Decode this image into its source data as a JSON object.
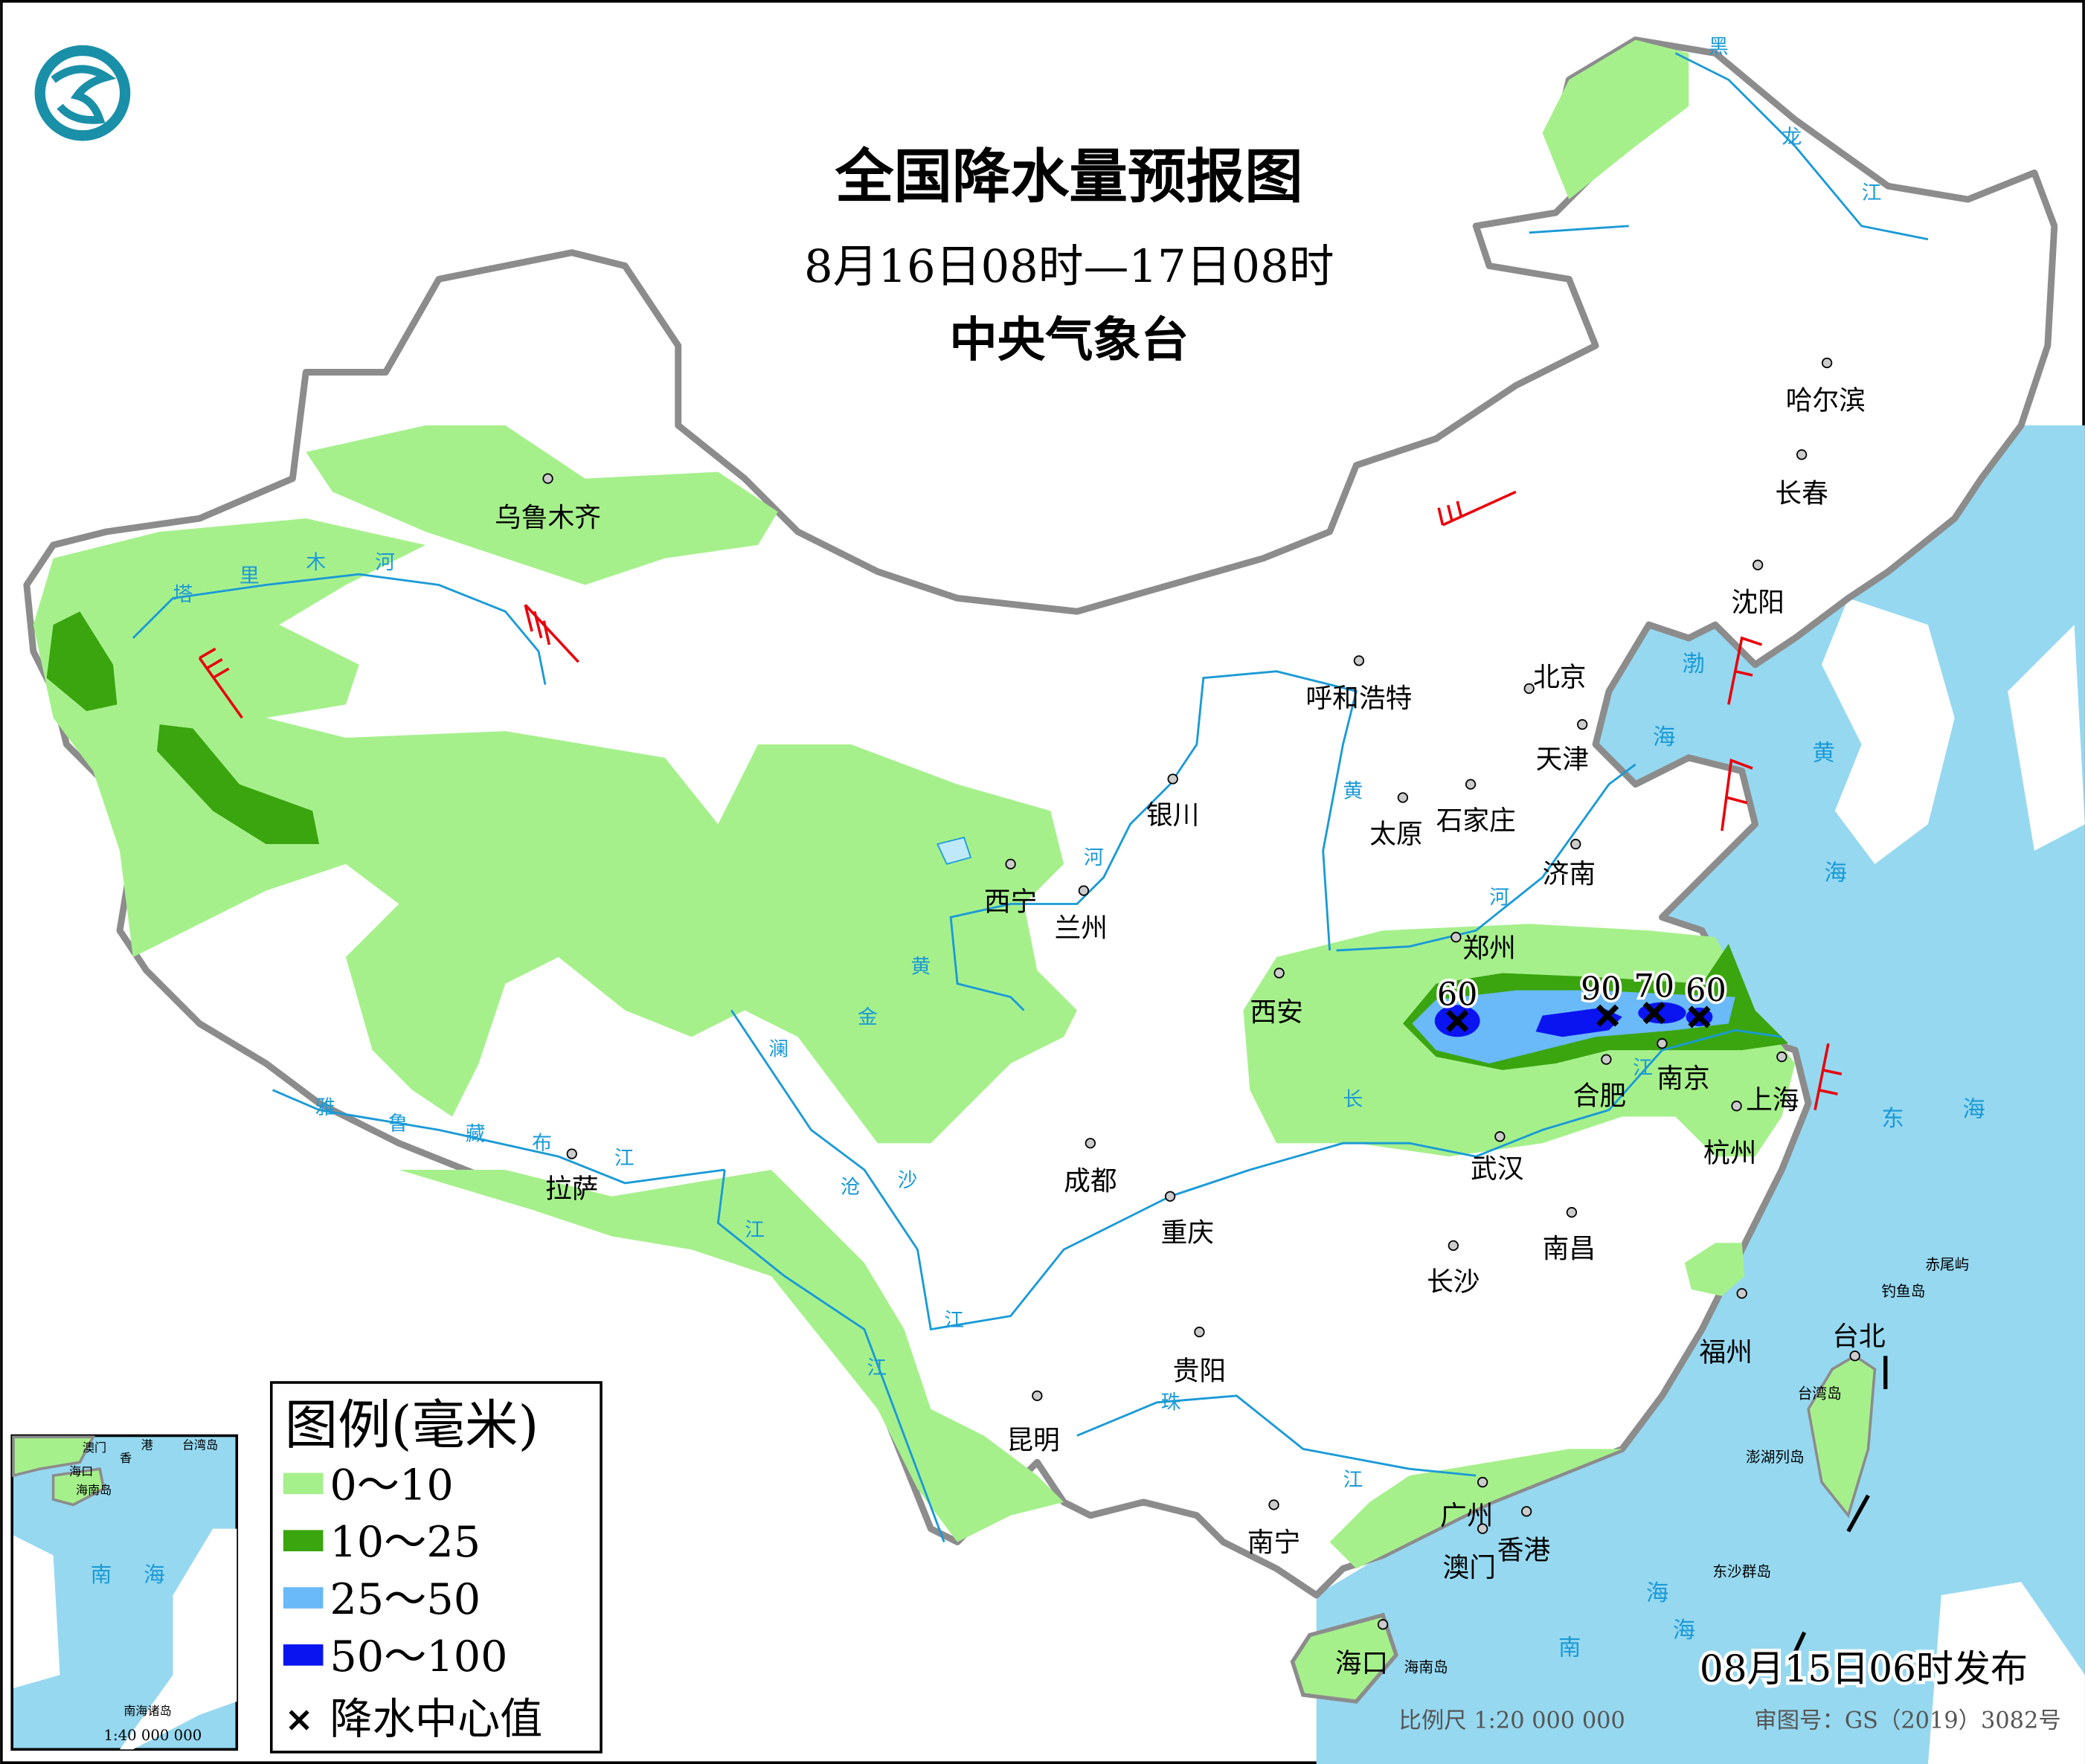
{
  "header": {
    "title": "全国降水量预报图",
    "period": "8月16日08时—17日08时",
    "issuer": "中央气象台"
  },
  "colors": {
    "sea": "#96d8f0",
    "rain_0_10": "#a6f08c",
    "rain_10_25": "#3aa50e",
    "rain_25_50": "#6ab9f8",
    "rain_50_100": "#0a14f0",
    "border": "#8c8c8c",
    "river": "#1a9ad6",
    "wind_barb": "#e8000b"
  },
  "legend": {
    "title": "图例(毫米)",
    "items": [
      {
        "label": "0～10",
        "color": "#a6f08c"
      },
      {
        "label": "10～25",
        "color": "#3aa50e"
      },
      {
        "label": "25～50",
        "color": "#6ab9f8"
      },
      {
        "label": "50～100",
        "color": "#0a14f0"
      }
    ],
    "center_marker": {
      "icon": "x-mark-icon",
      "label": "降水中心值"
    }
  },
  "rain_centers": [
    {
      "value": "60"
    },
    {
      "value": "90"
    },
    {
      "value": "70"
    },
    {
      "value": "60"
    }
  ],
  "cities": [
    "乌鲁木齐",
    "拉萨",
    "西宁",
    "兰州",
    "银川",
    "呼和浩特",
    "北京",
    "天津",
    "石家庄",
    "太原",
    "济南",
    "郑州",
    "西安",
    "合肥",
    "南京",
    "上海",
    "杭州",
    "武汉",
    "南昌",
    "长沙",
    "成都",
    "重庆",
    "贵阳",
    "昆明",
    "南宁",
    "广州",
    "香港",
    "澳门",
    "海口",
    "福州",
    "台北",
    "哈尔滨",
    "长春",
    "沈阳"
  ],
  "islands": [
    "台湾岛",
    "海南岛",
    "钓鱼岛",
    "赤尾屿",
    "澎湖列岛",
    "东沙群岛"
  ],
  "seas": [
    "渤",
    "海",
    "黄",
    "海",
    "东",
    "海",
    "南",
    "海",
    "海"
  ],
  "rivers": [
    "塔",
    "里",
    "木",
    "河",
    "雅",
    "鲁",
    "藏",
    "布",
    "江",
    "黄",
    "河",
    "黄",
    "河",
    "长",
    "江",
    "江",
    "澜",
    "沧",
    "江",
    "金",
    "沙",
    "江",
    "珠",
    "江",
    "黑",
    "龙",
    "江"
  ],
  "inset": {
    "labels": [
      "澳门",
      "香",
      "港",
      "台湾岛",
      "海口",
      "海南岛",
      "南",
      "海",
      "南海诸岛"
    ],
    "scale": "1:40 000 000"
  },
  "footer": {
    "release": "08月15日06时发布",
    "scale": "比例尺  1:20 000 000",
    "approval": "审图号：GS（2019）3082号"
  }
}
